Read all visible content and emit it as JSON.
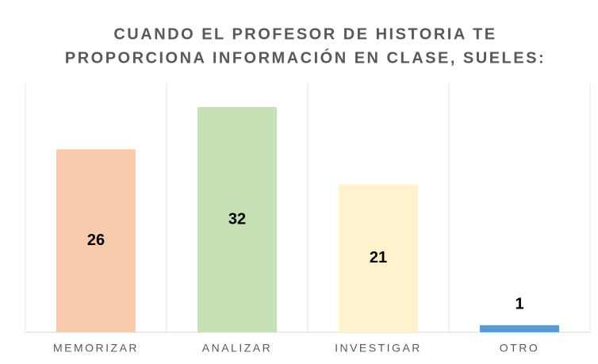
{
  "chart_data": {
    "type": "bar",
    "title": [
      "CUANDO EL PROFESOR DE HISTORIA TE",
      "PROPORCIONA INFORMACIÓN EN CLASE, SUELES:"
    ],
    "categories": [
      "MEMORIZAR",
      "ANALIZAR",
      "INVESTIGAR",
      "OTRO"
    ],
    "values": [
      26,
      32,
      21,
      1
    ],
    "colors": [
      "#f8cbad",
      "#c5e0b4",
      "#fff2cc",
      "#5b9bd5"
    ]
  }
}
